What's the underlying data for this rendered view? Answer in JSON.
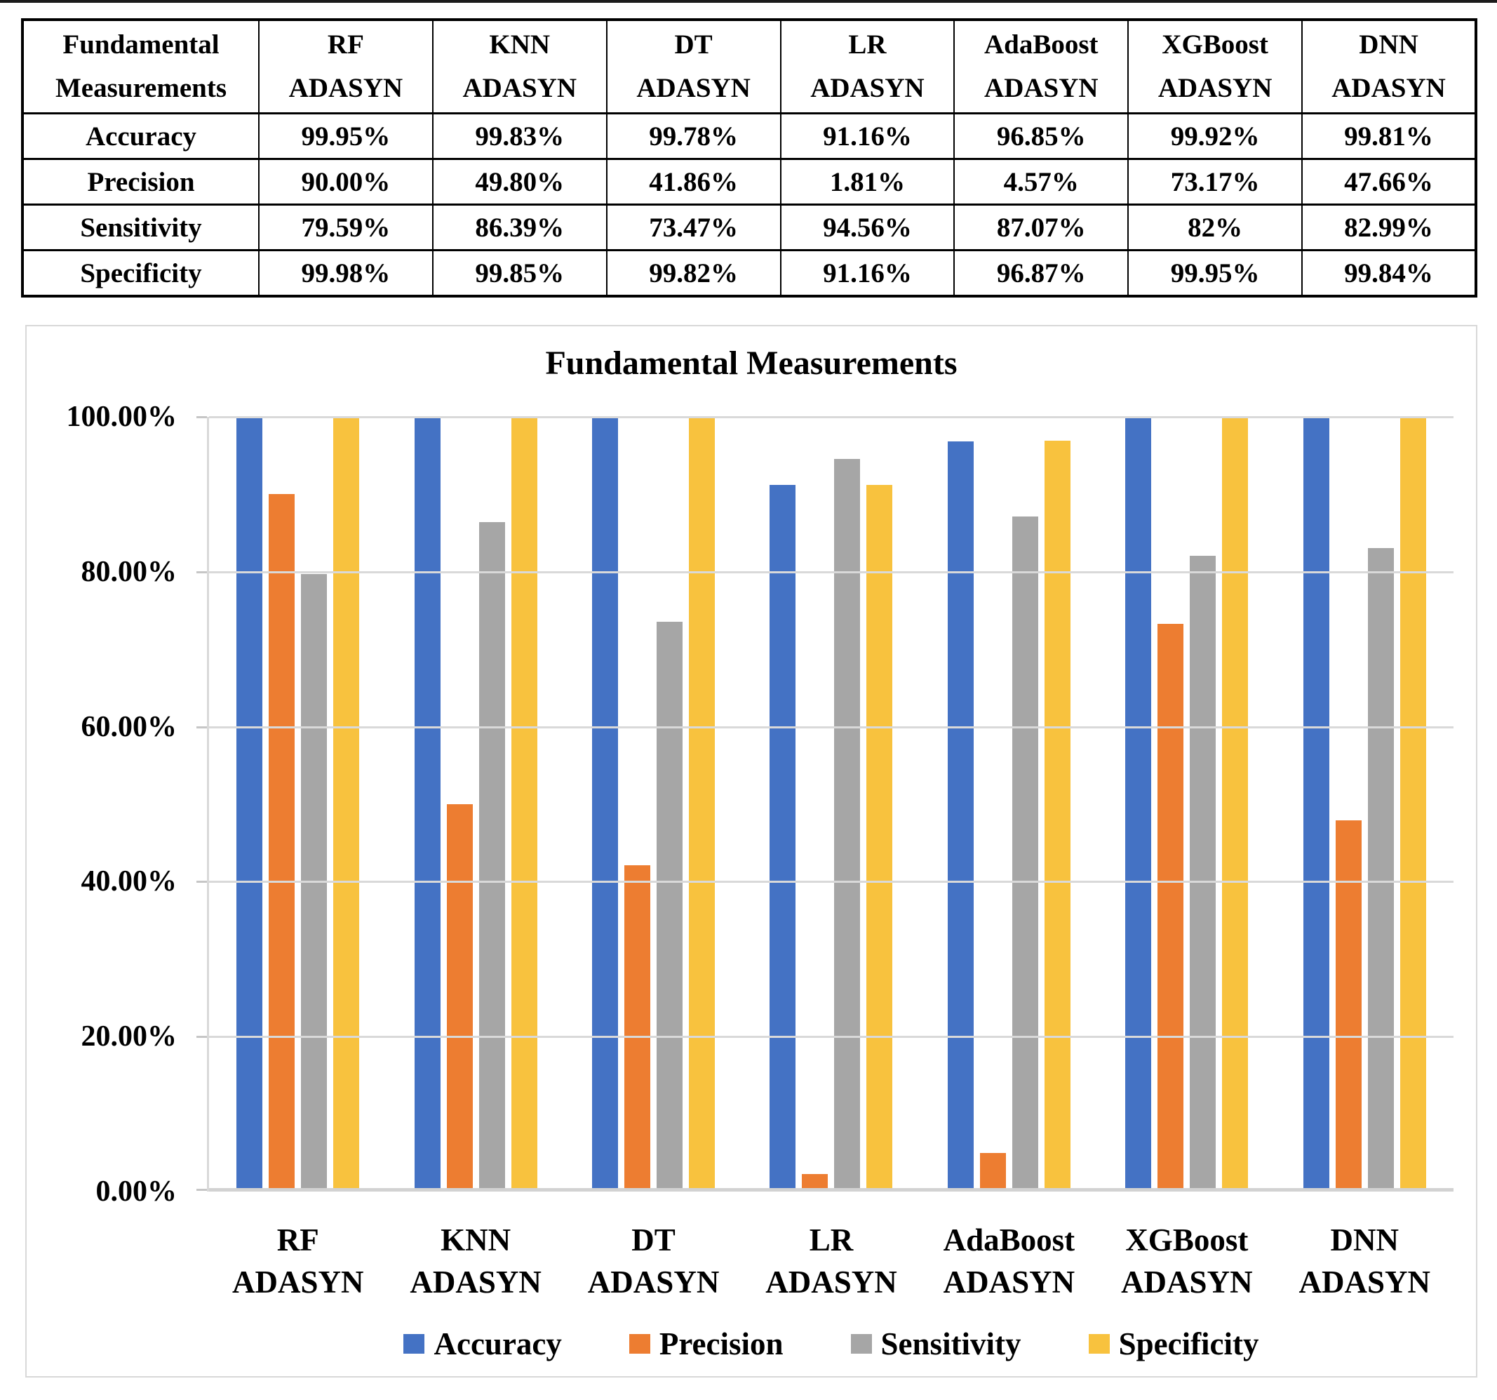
{
  "table": {
    "corner": {
      "line1": "Fundamental",
      "line2": "Measurements"
    },
    "columns": [
      {
        "line1": "RF",
        "line2": "ADASYN"
      },
      {
        "line1": "KNN",
        "line2": "ADASYN"
      },
      {
        "line1": "DT",
        "line2": "ADASYN"
      },
      {
        "line1": "LR",
        "line2": "ADASYN"
      },
      {
        "line1": "AdaBoost",
        "line2": "ADASYN"
      },
      {
        "line1": "XGBoost",
        "line2": "ADASYN"
      },
      {
        "line1": "DNN",
        "line2": "ADASYN"
      }
    ],
    "rows": [
      {
        "label": "Accuracy",
        "values": [
          "99.95%",
          "99.83%",
          "99.78%",
          "91.16%",
          "96.85%",
          "99.92%",
          "99.81%"
        ]
      },
      {
        "label": "Precision",
        "values": [
          "90.00%",
          "49.80%",
          "41.86%",
          "1.81%",
          "4.57%",
          "73.17%",
          "47.66%"
        ]
      },
      {
        "label": "Sensitivity",
        "values": [
          "79.59%",
          "86.39%",
          "73.47%",
          "94.56%",
          "87.07%",
          "82%",
          "82.99%"
        ]
      },
      {
        "label": "Specificity",
        "values": [
          "99.98%",
          "99.85%",
          "99.82%",
          "91.16%",
          "96.87%",
          "99.95%",
          "99.84%"
        ]
      }
    ]
  },
  "chart_data": {
    "type": "bar",
    "title": "Fundamental Measurements",
    "categories": [
      "RF ADASYN",
      "KNN ADASYN",
      "DT ADASYN",
      "LR ADASYN",
      "AdaBoost ADASYN",
      "XGBoost ADASYN",
      "DNN ADASYN"
    ],
    "series": [
      {
        "name": "Accuracy",
        "color": "#4472C4",
        "values": [
          99.95,
          99.83,
          99.78,
          91.16,
          96.85,
          99.92,
          99.81
        ]
      },
      {
        "name": "Precision",
        "color": "#ED7D31",
        "values": [
          90.0,
          49.8,
          41.86,
          1.81,
          4.57,
          73.17,
          47.66
        ]
      },
      {
        "name": "Sensitivity",
        "color": "#A6A6A6",
        "values": [
          79.59,
          86.39,
          73.47,
          94.56,
          87.07,
          82.0,
          82.99
        ]
      },
      {
        "name": "Specificity",
        "color": "#F8C23E",
        "values": [
          99.98,
          99.85,
          99.82,
          91.16,
          96.87,
          99.95,
          99.84
        ]
      }
    ],
    "y_axis": {
      "min": 0,
      "max": 100,
      "ticks": [
        "100.00%",
        "80.00%",
        "60.00%",
        "40.00%",
        "20.00%",
        "0.00%"
      ]
    },
    "grid": true,
    "legend_position": "bottom",
    "gridline_color": "#D9D9D9"
  }
}
